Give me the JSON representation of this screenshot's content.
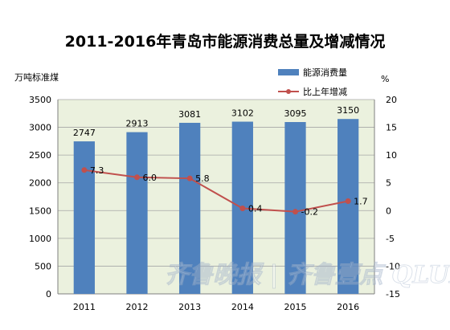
{
  "chart_data": {
    "type": "bar",
    "title": "2011-2016年青岛市能源消费总量及增减情况",
    "categories": [
      "2011",
      "2012",
      "2013",
      "2014",
      "2015",
      "2016"
    ],
    "y_left": {
      "label": "万吨标准煤",
      "range": [
        0,
        3500
      ],
      "ticks": [
        "0",
        "500",
        "1000",
        "1500",
        "2000",
        "2500",
        "3000",
        "3500"
      ]
    },
    "y_right": {
      "label": "%",
      "range": [
        -15,
        20
      ],
      "ticks": [
        "-15",
        "-10",
        "-5",
        "0",
        "5",
        "10",
        "15",
        "20"
      ]
    },
    "series": [
      {
        "name": "能源消费量",
        "type": "bar",
        "axis": "left",
        "values": [
          2747,
          2913,
          3081,
          3102,
          3095,
          3150
        ],
        "labels": [
          "2747",
          "2913",
          "3081",
          "3102",
          "3095",
          "3150"
        ]
      },
      {
        "name": "比上年增减",
        "type": "line",
        "axis": "right",
        "values": [
          7.3,
          6.0,
          5.8,
          0.4,
          -0.2,
          1.7
        ],
        "labels": [
          "7.3",
          "6.0",
          "5.8",
          "0.4",
          "-0.2",
          "1.7"
        ]
      }
    ],
    "grid": true,
    "legend_position": "top-right",
    "colors": {
      "bar": "#4f81bd",
      "line": "#c0504d",
      "plot_background": "#ebf1de",
      "grid": "#a6a6a6"
    }
  },
  "watermark": {
    "text": "齐鲁晚报 | 齐鲁壹点 QLUD"
  }
}
